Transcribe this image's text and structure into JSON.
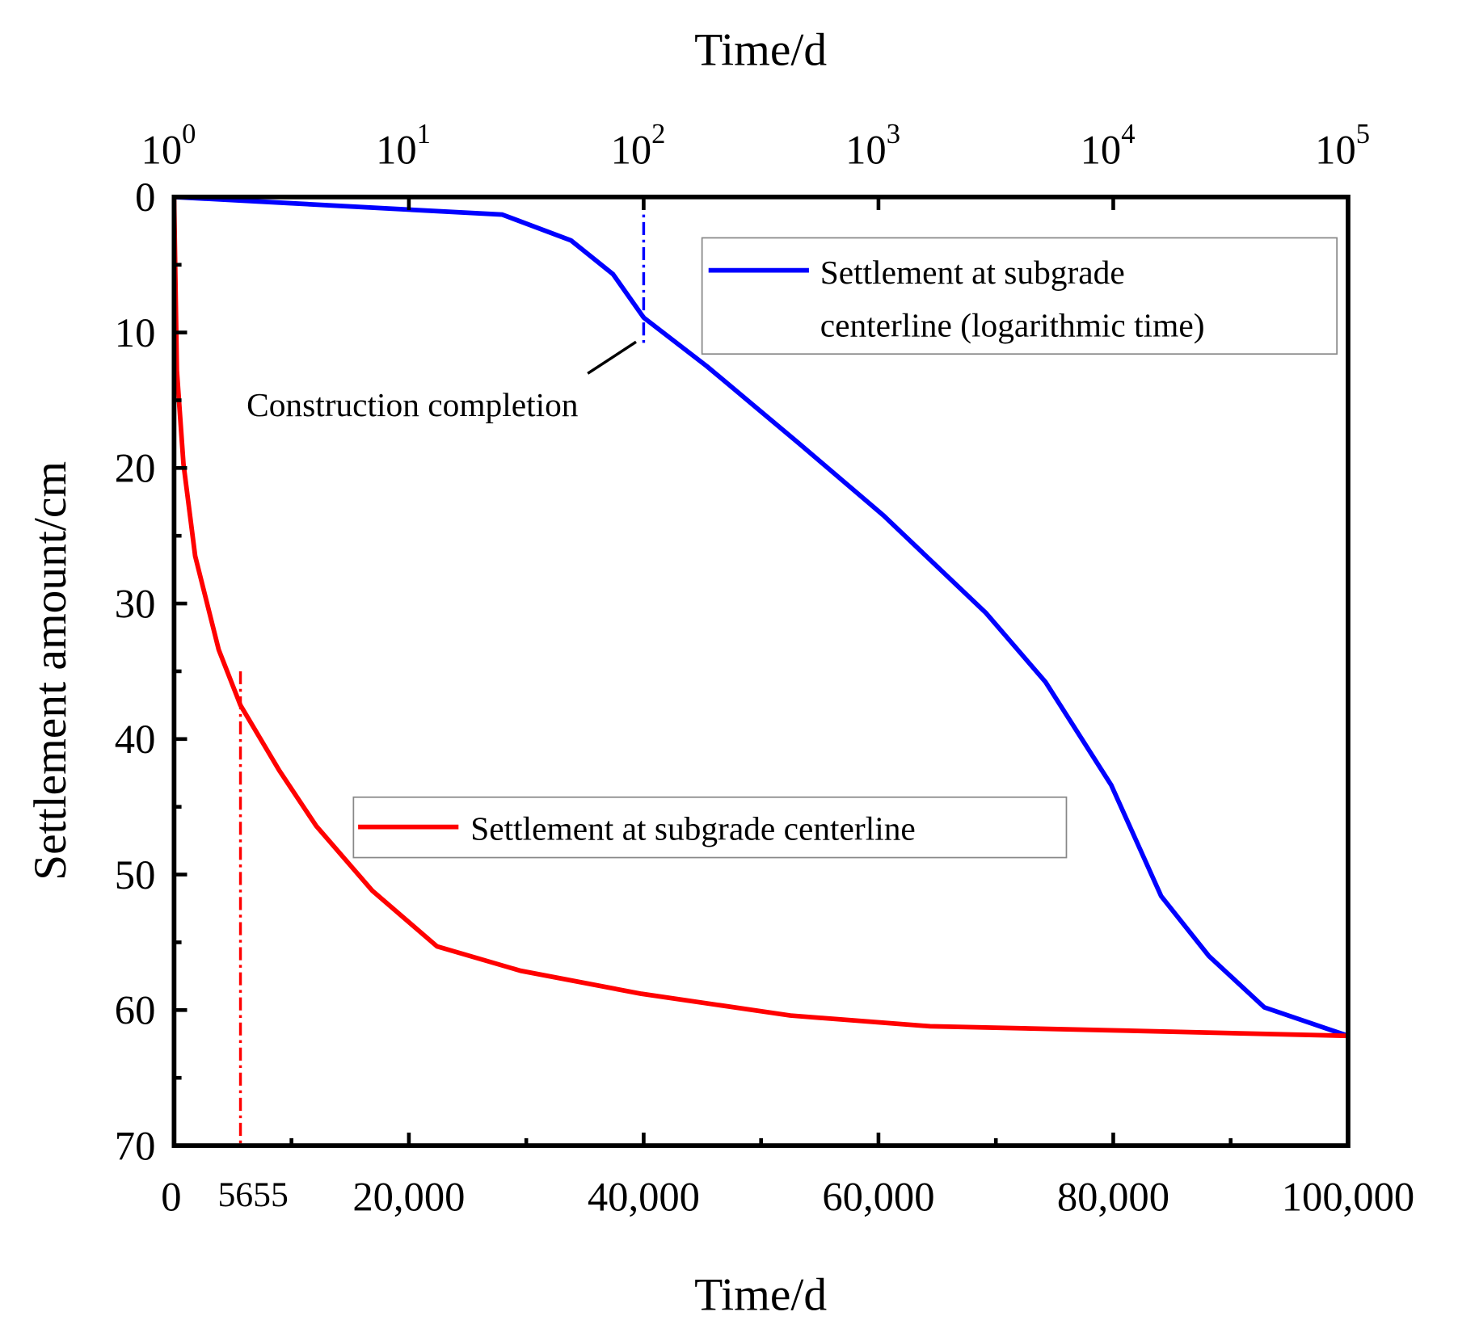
{
  "chart_data": {
    "type": "line",
    "top_axis": {
      "label": "Time/d",
      "scale": "log",
      "range": [
        1,
        100000
      ],
      "tick_labels": [
        "10^0",
        "10^1",
        "10^2",
        "10^3",
        "10^4",
        "10^5"
      ]
    },
    "bottom_axis": {
      "label": "Time/d",
      "scale": "linear",
      "range": [
        0,
        100000
      ],
      "tick_labels": [
        "0",
        "20,000",
        "40,000",
        "60,000",
        "80,000",
        "100,000"
      ],
      "extra_label": "5655"
    },
    "y_axis": {
      "label": "Settlement amount/cm",
      "range": [
        0,
        70
      ],
      "inverted": true,
      "tick_labels": [
        "0",
        "10",
        "20",
        "30",
        "40",
        "50",
        "60",
        "70"
      ]
    },
    "grid": false,
    "series": [
      {
        "name": "Settlement at subgrade centerline (logarithmic time)",
        "axis": "top",
        "color": "#0000ff",
        "x": [
          1,
          25,
          49,
          74,
          100,
          186,
          460,
          1050,
          2870,
          5150,
          9800,
          16000,
          25500,
          44000,
          100000
        ],
        "y": [
          0,
          1.3,
          3.2,
          5.7,
          8.9,
          12.5,
          18.2,
          23.5,
          30.7,
          35.8,
          43.4,
          51.6,
          56.0,
          59.8,
          61.9
        ]
      },
      {
        "name": "Settlement at subgrade centerline",
        "axis": "bottom",
        "color": "#ff0000",
        "x": [
          0,
          240,
          800,
          1800,
          3800,
          5655,
          8950,
          12100,
          16900,
          22400,
          29500,
          39800,
          52500,
          64400,
          80200,
          100000
        ],
        "y": [
          0,
          12.8,
          19.7,
          26.5,
          33.4,
          37.5,
          42.3,
          46.4,
          51.2,
          55.3,
          57.1,
          58.8,
          60.4,
          61.2,
          61.5,
          61.9
        ]
      }
    ],
    "reference_lines": [
      {
        "axis": "top",
        "x": 100,
        "color": "#0000ff",
        "style": "dash-dot"
      },
      {
        "axis": "bottom",
        "x": 5655,
        "color": "#ff0000",
        "style": "dash-dot"
      }
    ],
    "annotations": [
      {
        "text": "Construction completion"
      }
    ],
    "legend": [
      {
        "line1": "Settlement at subgrade",
        "line2": "centerline (logarithmic time)",
        "placement": "top-right"
      },
      {
        "text": "Settlement at subgrade centerline",
        "placement": "center"
      }
    ]
  }
}
